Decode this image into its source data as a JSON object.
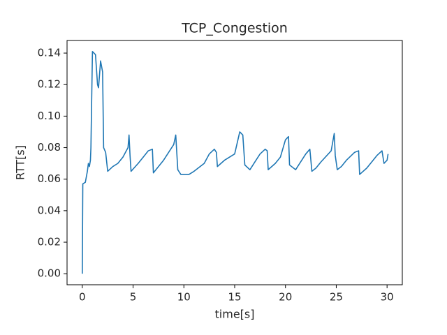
{
  "chart_data": {
    "type": "line",
    "title": "TCP_Congestion",
    "x_label": "time[s]",
    "y_label": "RTT[s]",
    "x": [
      0,
      0.05,
      0.3,
      0.5,
      0.6,
      0.7,
      0.8,
      0.85,
      1.0,
      1.3,
      1.5,
      1.6,
      1.8,
      2.0,
      2.1,
      2.3,
      2.5,
      3.0,
      3.5,
      4.0,
      4.5,
      4.6,
      4.7,
      4.8,
      5.5,
      6.0,
      6.5,
      6.9,
      7.0,
      7.5,
      8.0,
      8.5,
      9.0,
      9.2,
      9.4,
      9.7,
      10.5,
      11.0,
      12.0,
      12.5,
      13.0,
      13.2,
      13.3,
      14.0,
      15.0,
      15.5,
      15.8,
      16.0,
      16.5,
      17.0,
      17.5,
      18.0,
      18.2,
      18.3,
      19.0,
      19.5,
      20.0,
      20.3,
      20.4,
      21.0,
      21.5,
      22.0,
      22.4,
      22.6,
      23.0,
      23.5,
      24.5,
      24.8,
      24.9,
      25.1,
      25.5,
      26.0,
      26.8,
      27.2,
      27.3,
      28.0,
      29.0,
      29.5,
      29.7,
      30.0,
      30.1
    ],
    "values": [
      0.0,
      0.057,
      0.058,
      0.065,
      0.07,
      0.068,
      0.072,
      0.08,
      0.141,
      0.139,
      0.12,
      0.118,
      0.135,
      0.128,
      0.08,
      0.077,
      0.065,
      0.068,
      0.07,
      0.074,
      0.08,
      0.088,
      0.075,
      0.065,
      0.07,
      0.074,
      0.078,
      0.079,
      0.064,
      0.068,
      0.072,
      0.077,
      0.082,
      0.088,
      0.066,
      0.063,
      0.063,
      0.065,
      0.07,
      0.076,
      0.079,
      0.077,
      0.068,
      0.072,
      0.076,
      0.09,
      0.088,
      0.069,
      0.066,
      0.071,
      0.076,
      0.079,
      0.078,
      0.066,
      0.07,
      0.074,
      0.085,
      0.087,
      0.069,
      0.066,
      0.071,
      0.076,
      0.079,
      0.065,
      0.067,
      0.071,
      0.078,
      0.089,
      0.075,
      0.066,
      0.068,
      0.072,
      0.077,
      0.078,
      0.063,
      0.067,
      0.075,
      0.078,
      0.07,
      0.072,
      0.076
    ],
    "color": "#1f77b4",
    "xlim": [
      -1.5,
      31.5
    ],
    "xticks": [
      0,
      5,
      10,
      15,
      20,
      25,
      30
    ],
    "ylim": [
      -0.007,
      0.148
    ],
    "yticks": [
      {
        "value": 0,
        "label": "0.00"
      },
      {
        "value": 0.02,
        "label": "0.02"
      },
      {
        "value": 0.04,
        "label": "0.04"
      },
      {
        "value": 0.06,
        "label": "0.06"
      },
      {
        "value": 0.08,
        "label": "0.08"
      },
      {
        "value": 0.1,
        "label": "0.10"
      },
      {
        "value": 0.12,
        "label": "0.12"
      },
      {
        "value": 0.14,
        "label": "0.14"
      }
    ]
  }
}
